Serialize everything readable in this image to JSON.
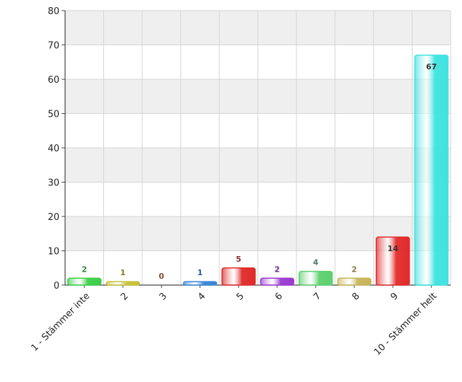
{
  "chart_data": {
    "type": "bar",
    "title": "",
    "xlabel": "",
    "ylabel": "",
    "categories": [
      "1 - Stämmer inte",
      "2",
      "3",
      "4",
      "5",
      "6",
      "7",
      "8",
      "9",
      "10 - Stämmer helt"
    ],
    "values": [
      2,
      1,
      0,
      1,
      5,
      2,
      4,
      2,
      14,
      67
    ],
    "data_labels": [
      "2",
      "1",
      "0",
      "1",
      "5",
      "2",
      "4",
      "2",
      "14",
      "67"
    ],
    "ylim": [
      0,
      80
    ],
    "yticks": [
      "0",
      "10",
      "20",
      "30",
      "40",
      "50",
      "60",
      "70",
      "80"
    ],
    "grid": true,
    "legend": "none",
    "colors": [
      "#3ccf4a",
      "#c8c23a",
      "#b57a1e",
      "#3a86d8",
      "#e02a2a",
      "#9a3ad0",
      "#5ed06e",
      "#c9b45a",
      "#e22b2b",
      "#3fe3e0"
    ],
    "label_colors": [
      "#2f8a35",
      "#8a7a20",
      "#8a4a2a",
      "#2a5a9a",
      "#8a2a2a",
      "#6a2a9a",
      "#4a7a6a",
      "#8a7a40",
      "#333333",
      "#333333"
    ],
    "band_color": "#efefef",
    "grid_color": "#d6d6d6"
  }
}
